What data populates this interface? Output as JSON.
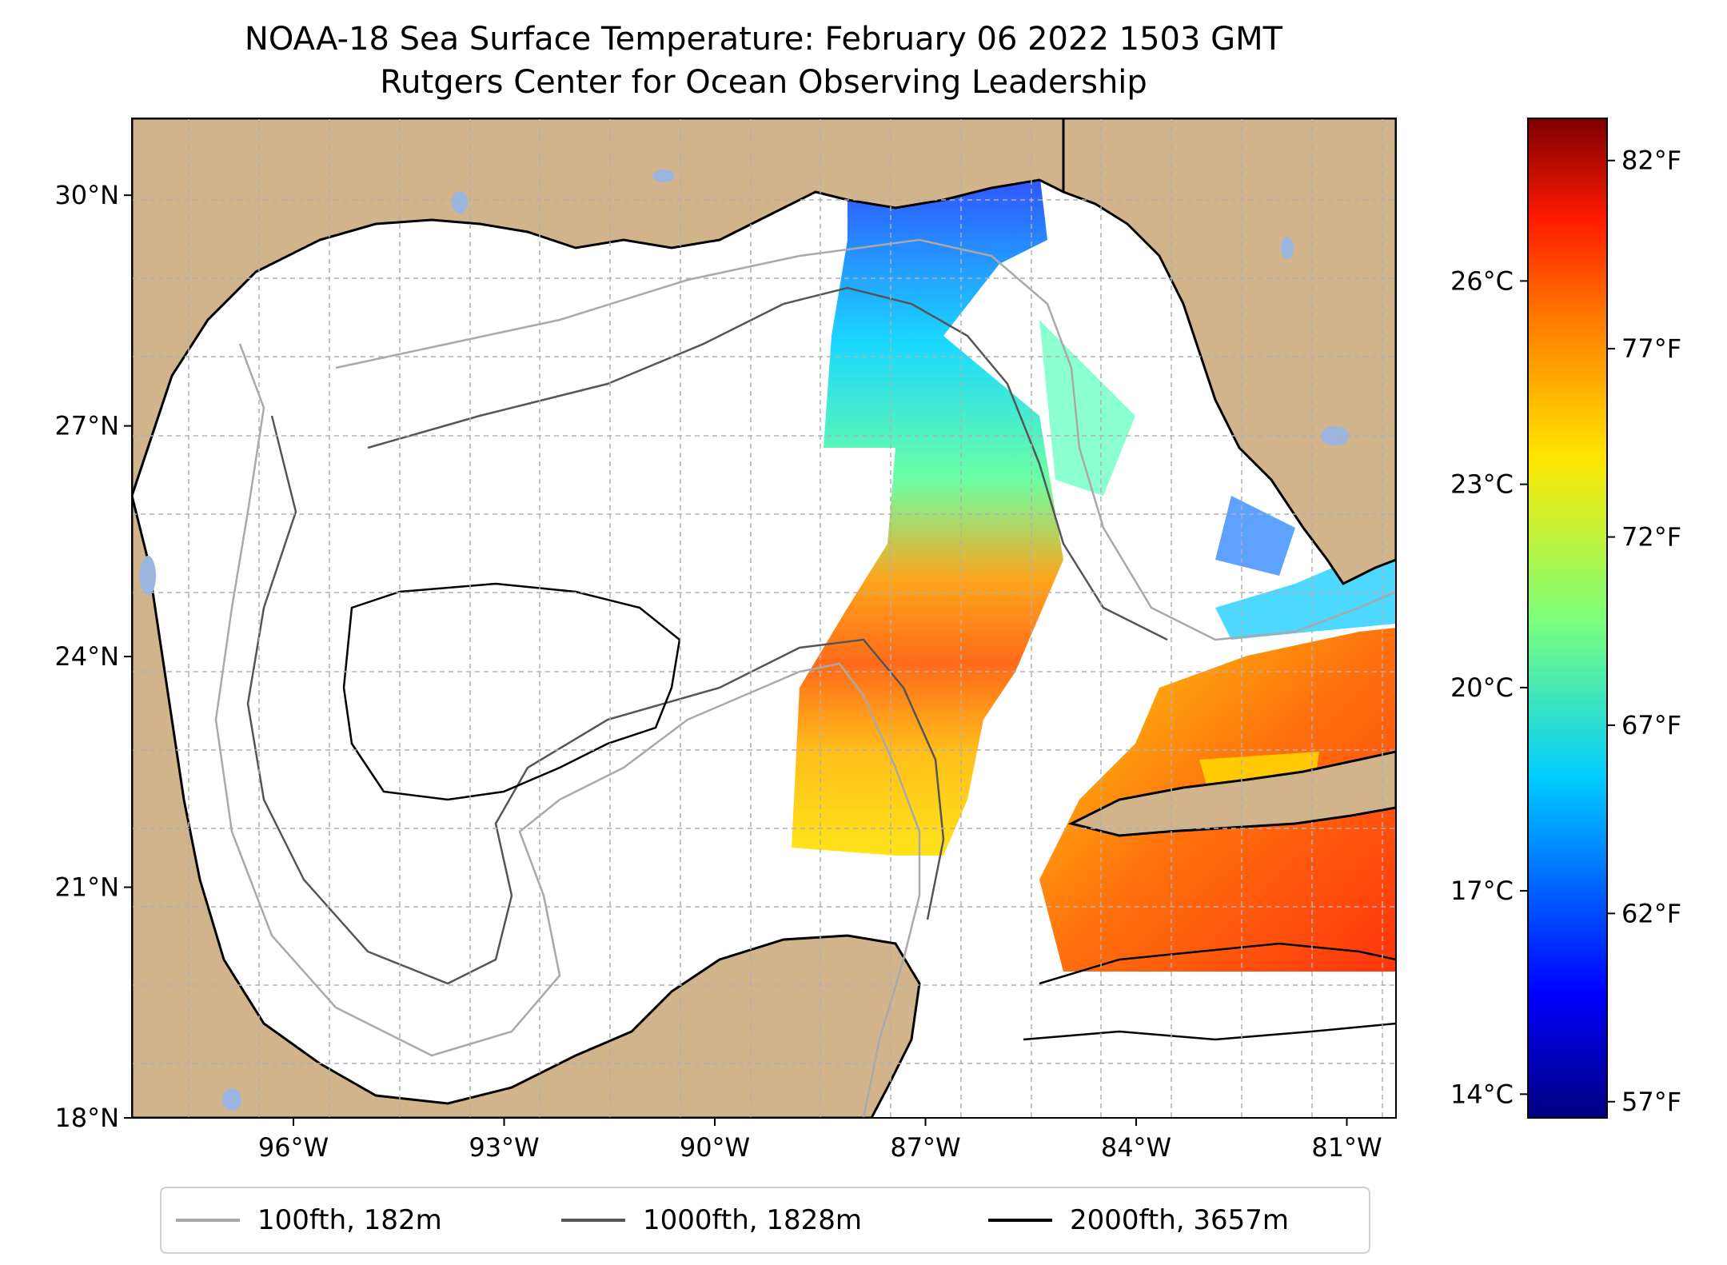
{
  "title": "NOAA-18 Sea Surface Temperature: February 06 2022 1503 GMT",
  "subtitle": "Rutgers Center for Ocean Observing Leadership",
  "map": {
    "lat_range": [
      18,
      31
    ],
    "lon_range": [
      -98.3,
      -80.3
    ],
    "lat_ticks": [
      {
        "value": 30,
        "label": "30°N"
      },
      {
        "value": 27,
        "label": "27°N"
      },
      {
        "value": 24,
        "label": "24°N"
      },
      {
        "value": 21,
        "label": "21°N"
      },
      {
        "value": 18,
        "label": "18°N"
      }
    ],
    "lon_ticks": [
      {
        "value": -96,
        "label": "96°W"
      },
      {
        "value": -93,
        "label": "93°W"
      },
      {
        "value": -90,
        "label": "90°W"
      },
      {
        "value": -87,
        "label": "87°W"
      },
      {
        "value": -84,
        "label": "84°W"
      },
      {
        "value": -81,
        "label": "81°W"
      }
    ],
    "gridlines": true,
    "land_color": "#d2b48c",
    "lake_color": "#9ab5e0"
  },
  "colorbar": {
    "colormap": "jet",
    "celsius_labels": [
      {
        "value": 26,
        "label": "26°C"
      },
      {
        "value": 23,
        "label": "23°C"
      },
      {
        "value": 20,
        "label": "20°C"
      },
      {
        "value": 17,
        "label": "17°C"
      },
      {
        "value": 14,
        "label": "14°C"
      }
    ],
    "fahrenheit_labels": [
      {
        "value": 82,
        "label": "82°F"
      },
      {
        "value": 77,
        "label": "77°F"
      },
      {
        "value": 72,
        "label": "72°F"
      },
      {
        "value": 67,
        "label": "67°F"
      },
      {
        "value": 62,
        "label": "62°F"
      },
      {
        "value": 57,
        "label": "57°F"
      }
    ]
  },
  "legend": {
    "items": [
      {
        "label": "100fth, 182m",
        "color": "#a9a9a9"
      },
      {
        "label": "1000fth, 1828m",
        "color": "#555555"
      },
      {
        "label": "2000fth, 3657m",
        "color": "#000000"
      }
    ]
  }
}
